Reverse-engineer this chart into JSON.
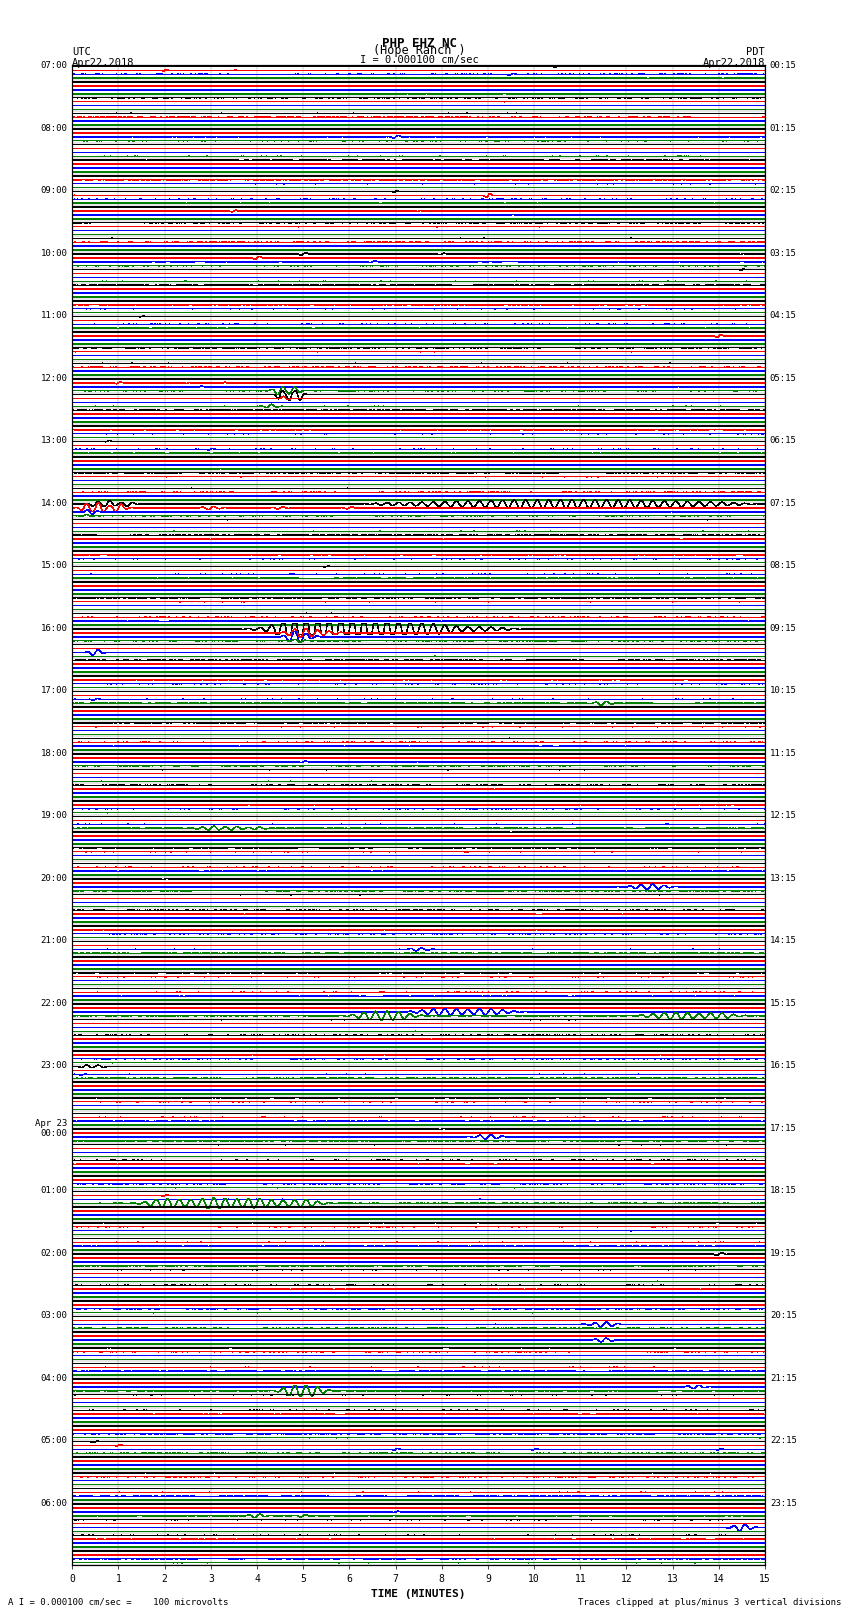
{
  "title_line1": "PHP EHZ NC",
  "title_line2": "(Hope Ranch )",
  "scale_text": "I = 0.000100 cm/sec",
  "left_header_line1": "UTC",
  "left_header_line2": "Apr22,2018",
  "right_header_line1": "PDT",
  "right_header_line2": "Apr22,2018",
  "footer_left": "A I = 0.000100 cm/sec =    100 microvolts",
  "footer_right": "Traces clipped at plus/minus 3 vertical divisions",
  "xlabel": "TIME (MINUTES)",
  "bg_color": "#ffffff",
  "trace_colors": [
    "black",
    "red",
    "blue",
    "green"
  ],
  "grid_color": "#888888",
  "trace_linewidth": 0.35,
  "noise_amplitude": 0.025,
  "figsize": [
    8.5,
    16.13
  ],
  "n_rows": 96,
  "n_samples": 1800,
  "left_labels": {
    "0": "07:00",
    "4": "08:00",
    "8": "09:00",
    "12": "10:00",
    "16": "11:00",
    "20": "12:00",
    "24": "13:00",
    "28": "14:00",
    "32": "15:00",
    "36": "16:00",
    "40": "17:00",
    "44": "18:00",
    "48": "19:00",
    "52": "20:00",
    "56": "21:00",
    "60": "22:00",
    "64": "23:00",
    "68": "Apr 23\n00:00",
    "72": "01:00",
    "76": "02:00",
    "80": "03:00",
    "84": "04:00",
    "88": "05:00",
    "92": "06:00"
  },
  "right_labels": {
    "0": "00:15",
    "4": "01:15",
    "8": "02:15",
    "12": "03:15",
    "16": "04:15",
    "20": "05:15",
    "24": "06:15",
    "28": "07:15",
    "32": "08:15",
    "36": "09:15",
    "40": "10:15",
    "44": "11:15",
    "48": "12:15",
    "52": "13:15",
    "56": "14:15",
    "60": "15:15",
    "64": "16:15",
    "68": "17:15",
    "72": "18:15",
    "76": "19:15",
    "80": "20:15",
    "84": "21:15",
    "88": "22:15",
    "92": "23:15"
  }
}
